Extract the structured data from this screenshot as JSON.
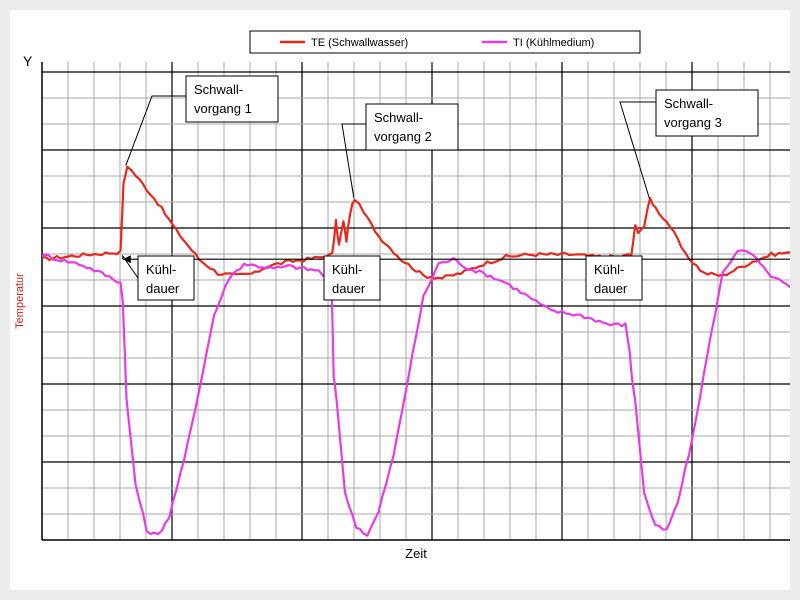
{
  "chart_data": {
    "type": "line",
    "xlabel": "Zeit",
    "ylabel": "Temperatur",
    "y_axis_letter": "Y",
    "x_range": [
      0,
      100
    ],
    "y_range": [
      0,
      100
    ],
    "grid": true,
    "legend_position": "top",
    "colors": {
      "te": "#e8281c",
      "ti": "#e83ae8",
      "grid_major": "#000000",
      "grid_minor": "#a8a8a8"
    },
    "series": [
      {
        "name": "TE (Schwallwasser)",
        "color": "#e8281c",
        "x": [
          0,
          6,
          10.5,
          10.9,
          11.4,
          13,
          15.5,
          18,
          21,
          23.5,
          26,
          28.5,
          30,
          33,
          35.5,
          37.5,
          38.8,
          39.3,
          39.7,
          40.3,
          40.7,
          41.2,
          41.8,
          43,
          45,
          48,
          51,
          53.5,
          56,
          59,
          62,
          65,
          68,
          71,
          74,
          77,
          78.8,
          79.3,
          79.7,
          80.5,
          81.3,
          82,
          84,
          86,
          88.5,
          91,
          93,
          95,
          97.5,
          100
        ],
        "y": [
          60,
          61,
          61.5,
          76,
          80,
          77,
          72,
          66,
          60,
          57,
          56.5,
          57,
          58.5,
          59.5,
          60,
          60.5,
          61,
          68,
          63,
          68,
          64,
          70,
          73,
          70,
          65,
          60,
          56.5,
          56,
          57,
          59,
          60.5,
          61,
          61,
          61,
          60.5,
          60.5,
          61,
          67,
          66,
          67,
          73,
          71,
          67,
          61,
          57,
          56.5,
          58,
          59.5,
          61,
          61.5
        ]
      },
      {
        "name": "TI (Kühlmedium)",
        "color": "#e83ae8",
        "x": [
          0,
          2,
          5,
          8,
          10.5,
          10.8,
          11.3,
          12.5,
          14,
          15.5,
          17,
          19,
          21,
          23,
          25,
          27,
          29,
          31,
          33,
          35,
          37,
          38.7,
          39,
          39.4,
          40.5,
          42,
          43.5,
          45,
          47,
          49,
          51,
          53,
          55,
          57,
          59,
          60.5,
          62,
          64,
          66,
          68,
          70,
          72,
          74,
          76,
          78,
          78.6,
          78.9,
          79.3,
          80.5,
          82,
          83.5,
          85,
          87,
          89,
          91,
          93,
          95,
          97,
          99,
          100
        ],
        "y": [
          61,
          60,
          59,
          57,
          55,
          51,
          30,
          12,
          2,
          1,
          5,
          17,
          32,
          48,
          56,
          59,
          58.5,
          58,
          58.5,
          58,
          57.5,
          55,
          35,
          30,
          10,
          3,
          1,
          6,
          18,
          35,
          52,
          59,
          60,
          58,
          57,
          56,
          55,
          53,
          51,
          49,
          48.5,
          48,
          47,
          46,
          46,
          40,
          34,
          30,
          10,
          3,
          2,
          8,
          22,
          40,
          57,
          62,
          61,
          57,
          55,
          54
        ]
      }
    ],
    "annotations": [
      {
        "id": "schwall1",
        "line1": "Schwall-",
        "line2": "vorgang 1"
      },
      {
        "id": "schwall2",
        "line1": "Schwall-",
        "line2": "vorgang 2"
      },
      {
        "id": "schwall3",
        "line1": "Schwall-",
        "line2": "vorgang 3"
      },
      {
        "id": "kuehl1",
        "line1": "Kühl-",
        "line2": "dauer"
      },
      {
        "id": "kuehl2",
        "line1": "Kühl-",
        "line2": "dauer"
      },
      {
        "id": "kuehl3",
        "line1": "Kühl-",
        "line2": "dauer"
      }
    ],
    "cooling_intervals": [
      [
        10.8,
        39.2
      ],
      [
        39.2,
        78.9
      ],
      [
        78.9,
        100
      ]
    ],
    "event_points": [
      {
        "x": 11.2,
        "y": 80
      },
      {
        "x": 41.7,
        "y": 73
      },
      {
        "x": 81.2,
        "y": 73
      }
    ]
  }
}
